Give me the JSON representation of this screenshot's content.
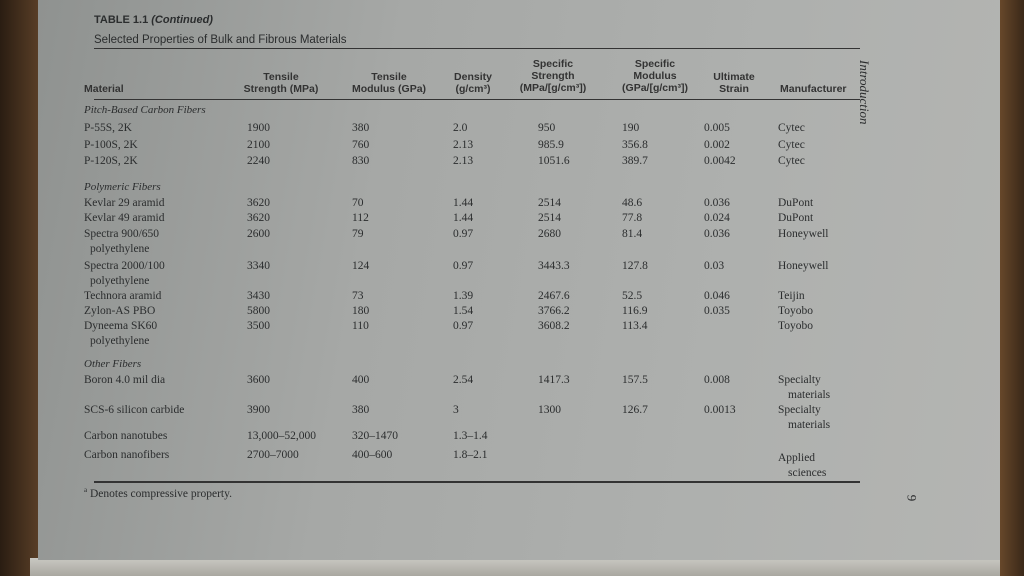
{
  "table": {
    "label": "TABLE 1.1",
    "label_suffix": "(Continued)",
    "caption": "Selected Properties of Bulk and Fibrous Materials",
    "headers": {
      "material": "Material",
      "tensile_strength": [
        "Tensile",
        "Strength (MPa)"
      ],
      "tensile_modulus": [
        "Tensile",
        "Modulus (GPa)"
      ],
      "density": [
        "Density",
        "(g/cm³)"
      ],
      "specific_strength": [
        "Specific",
        "Strength",
        "(MPa/[g/cm³])"
      ],
      "specific_modulus": [
        "Specific",
        "Modulus",
        "(GPa/[g/cm³])"
      ],
      "ultimate_strain": [
        "Ultimate",
        "Strain"
      ],
      "manufacturer": "Manufacturer"
    },
    "sections": [
      {
        "title": "Pitch-Based Carbon Fibers",
        "rows": [
          {
            "material": [
              "P-55S, 2K"
            ],
            "ts": "1900",
            "tm": "380",
            "d": "2.0",
            "ss": "950",
            "sm": "190",
            "us": "0.005",
            "mfr": [
              "Cytec"
            ]
          },
          {
            "material": [
              "P-100S, 2K"
            ],
            "ts": "2100",
            "tm": "760",
            "d": "2.13",
            "ss": "985.9",
            "sm": "356.8",
            "us": "0.002",
            "mfr": [
              "Cytec"
            ]
          },
          {
            "material": [
              "P-120S, 2K"
            ],
            "ts": "2240",
            "tm": "830",
            "d": "2.13",
            "ss": "1051.6",
            "sm": "389.7",
            "us": "0.0042",
            "mfr": [
              "Cytec"
            ]
          }
        ]
      },
      {
        "title": "Polymeric Fibers",
        "rows": [
          {
            "material": [
              "Kevlar 29 aramid"
            ],
            "ts": "3620",
            "tm": "70",
            "d": "1.44",
            "ss": "2514",
            "sm": "48.6",
            "us": "0.036",
            "mfr": [
              "DuPont"
            ]
          },
          {
            "material": [
              "Kevlar 49 aramid"
            ],
            "ts": "3620",
            "tm": "112",
            "d": "1.44",
            "ss": "2514",
            "sm": "77.8",
            "us": "0.024",
            "mfr": [
              "DuPont"
            ]
          },
          {
            "material": [
              "Spectra 900/650",
              "polyethylene"
            ],
            "ts": "2600",
            "tm": "79",
            "d": "0.97",
            "ss": "2680",
            "sm": "81.4",
            "us": "0.036",
            "mfr": [
              "Honeywell"
            ]
          },
          {
            "material": [
              "Spectra 2000/100",
              "polyethylene"
            ],
            "ts": "3340",
            "tm": "124",
            "d": "0.97",
            "ss": "3443.3",
            "sm": "127.8",
            "us": "0.03",
            "mfr": [
              "Honeywell"
            ]
          },
          {
            "material": [
              "Technora aramid"
            ],
            "ts": "3430",
            "tm": "73",
            "d": "1.39",
            "ss": "2467.6",
            "sm": "52.5",
            "us": "0.046",
            "mfr": [
              "Teijin"
            ]
          },
          {
            "material": [
              "Zylon-AS PBO"
            ],
            "ts": "5800",
            "tm": "180",
            "d": "1.54",
            "ss": "3766.2",
            "sm": "116.9",
            "us": "0.035",
            "mfr": [
              "Toyobo"
            ]
          },
          {
            "material": [
              "Dyneema SK60",
              "polyethylene"
            ],
            "ts": "3500",
            "tm": "110",
            "d": "0.97",
            "ss": "3608.2",
            "sm": "113.4",
            "us": "",
            "mfr": [
              "Toyobo"
            ]
          }
        ]
      },
      {
        "title": "Other Fibers",
        "rows": [
          {
            "material": [
              "Boron 4.0 mil dia"
            ],
            "ts": "3600",
            "tm": "400",
            "d": "2.54",
            "ss": "1417.3",
            "sm": "157.5",
            "us": "0.008",
            "mfr": [
              "Specialty",
              "materials"
            ]
          },
          {
            "material": [
              "SCS-6 silicon carbide"
            ],
            "ts": "3900",
            "tm": "380",
            "d": "3",
            "ss": "1300",
            "sm": "126.7",
            "us": "0.0013",
            "mfr": [
              "Specialty",
              "materials"
            ]
          },
          {
            "material": [
              "Carbon nanotubes"
            ],
            "ts": "13,000–52,000",
            "tm": "320–1470",
            "d": "1.3–1.4",
            "ss": "",
            "sm": "",
            "us": "",
            "mfr": []
          },
          {
            "material": [
              "Carbon nanofibers"
            ],
            "ts": "2700–7000",
            "tm": "400–600",
            "d": "1.8–2.1",
            "ss": "",
            "sm": "",
            "us": "",
            "mfr": [
              "Applied",
              "sciences"
            ]
          }
        ]
      }
    ],
    "footnote_mark": "a",
    "footnote": "Denotes compressive property."
  },
  "running_head": "Introduction",
  "page_number": "9"
}
